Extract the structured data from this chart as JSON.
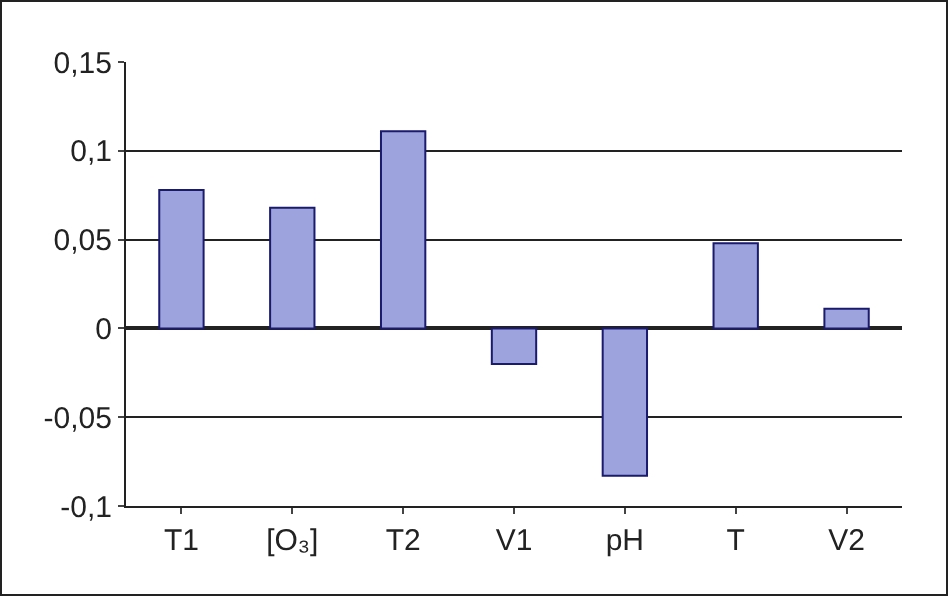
{
  "chart_data": {
    "type": "bar",
    "categories": [
      "T1",
      "[O₃]",
      "T2",
      "V1",
      "pH",
      "T",
      "V2"
    ],
    "values": [
      0.078,
      0.068,
      0.111,
      -0.02,
      -0.083,
      0.048,
      0.011
    ],
    "color": "#9da3dd",
    "ylim": [
      -0.1,
      0.15
    ],
    "yticks": [
      {
        "value": -0.1,
        "label": "-0,1"
      },
      {
        "value": -0.05,
        "label": "-0,05"
      },
      {
        "value": 0,
        "label": "0"
      },
      {
        "value": 0.05,
        "label": "0,05"
      },
      {
        "value": 0.1,
        "label": "0,1"
      },
      {
        "value": 0.15,
        "label": "0,15"
      }
    ],
    "grid": "y"
  }
}
